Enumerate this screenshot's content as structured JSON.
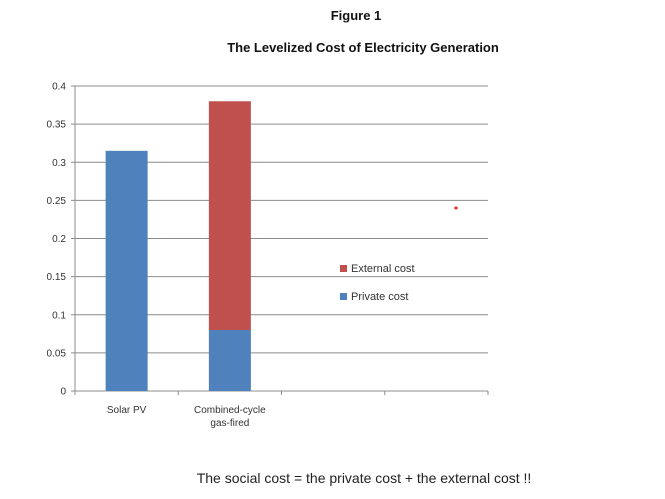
{
  "figure_label": "Figure 1",
  "caption": "The social cost = the private cost + the external cost !!",
  "chart_data": {
    "type": "bar",
    "stacked": true,
    "title": "The Levelized Cost of Electricity Generation",
    "xlabel": "",
    "ylabel": "",
    "ylim": [
      0,
      0.4
    ],
    "yticks": [
      "0",
      "0.05",
      "0.1",
      "0.15",
      "0.2",
      "0.25",
      "0.3",
      "0.35",
      "0.4"
    ],
    "ytick_values": [
      0,
      0.05,
      0.1,
      0.15,
      0.2,
      0.25,
      0.3,
      0.35,
      0.4
    ],
    "categories": [
      {
        "lines": [
          "Solar PV"
        ]
      },
      {
        "lines": [
          "Combined-cycle",
          "gas-fired"
        ]
      },
      {
        "lines": []
      },
      {
        "lines": []
      }
    ],
    "series": [
      {
        "name": "Private cost",
        "color": "#4f81bd",
        "values": [
          0.315,
          0.08,
          null,
          null
        ]
      },
      {
        "name": "External cost",
        "color": "#c0504d",
        "values": [
          0,
          0.3,
          null,
          null
        ]
      }
    ],
    "grid": true,
    "legend": "center-right"
  }
}
